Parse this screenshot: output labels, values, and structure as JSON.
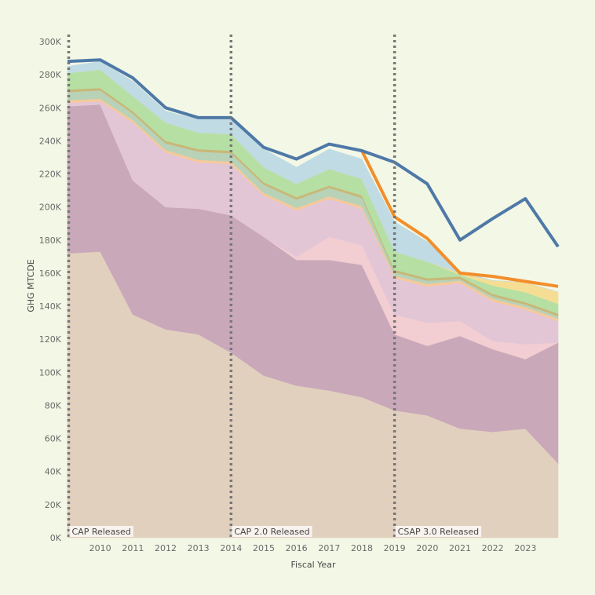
{
  "chart_data": {
    "type": "area",
    "title": "",
    "xlabel": "Fiscal Year",
    "ylabel": "GHG MTCDE",
    "xlim": [
      2009,
      2024
    ],
    "ylim": [
      0,
      300000
    ],
    "grid": false,
    "x": [
      2009,
      2010,
      2011,
      2012,
      2013,
      2014,
      2015,
      2016,
      2017,
      2018,
      2019,
      2020,
      2021,
      2022,
      2023,
      2024
    ],
    "x_ticks": [
      2010,
      2011,
      2012,
      2013,
      2014,
      2015,
      2016,
      2017,
      2018,
      2019,
      2020,
      2021,
      2022,
      2023
    ],
    "y_ticks": [
      0,
      20000,
      40000,
      60000,
      80000,
      100000,
      120000,
      140000,
      160000,
      180000,
      200000,
      220000,
      240000,
      260000,
      280000,
      300000
    ],
    "y_tick_labels": [
      "0K",
      "20K",
      "40K",
      "60K",
      "80K",
      "100K",
      "120K",
      "140K",
      "160K",
      "180K",
      "200K",
      "220K",
      "240K",
      "260K",
      "280K",
      "300K"
    ],
    "stacked_series": [
      {
        "color": "#e2d0be",
        "values": [
          172000,
          173000,
          135000,
          126000,
          123000,
          112000,
          98000,
          92000,
          89000,
          85000,
          77000,
          74000,
          66000,
          64000,
          66000,
          45000
        ]
      },
      {
        "color": "#c9a8ba",
        "values": [
          89000,
          89000,
          81000,
          74000,
          76000,
          83000,
          84000,
          76000,
          79000,
          80000,
          46000,
          42000,
          56000,
          50000,
          42000,
          73000
        ]
      },
      {
        "color": "#f2cdd2",
        "values": [
          0,
          0,
          0,
          0,
          0,
          0,
          0,
          2000,
          14000,
          12000,
          12000,
          14000,
          9000,
          5000,
          9000,
          0
        ]
      },
      {
        "color": "#e2c6d5",
        "values": [
          2000,
          2000,
          35000,
          33000,
          28000,
          31000,
          25000,
          28000,
          23000,
          22000,
          22000,
          22000,
          23000,
          24000,
          21000,
          13000
        ]
      },
      {
        "color": "#f7c99a",
        "values": [
          1500,
          1500,
          1500,
          1500,
          1500,
          1500,
          1500,
          1500,
          1500,
          1500,
          1500,
          1500,
          1500,
          1500,
          1500,
          1500
        ]
      },
      {
        "color": "#b8d2b8",
        "values": [
          5000,
          5000,
          4000,
          4000,
          5000,
          5000,
          5000,
          5000,
          5000,
          5000,
          2000,
          2000,
          1000,
          1500,
          1500,
          1500
        ]
      },
      {
        "color": "#c8b878",
        "values": [
          1500,
          1500,
          1500,
          1500,
          1500,
          1500,
          1500,
          1500,
          1500,
          1500,
          1500,
          1500,
          1500,
          1500,
          1500,
          1500
        ]
      },
      {
        "color": "#b6dfa4",
        "values": [
          10000,
          11000,
          9000,
          11000,
          10000,
          10000,
          9000,
          8000,
          10000,
          10000,
          11000,
          10000,
          1000,
          5000,
          6000,
          6000
        ]
      },
      {
        "color": "#f5de94",
        "values": [
          0,
          0,
          0,
          0,
          0,
          0,
          0,
          0,
          0,
          0,
          0,
          0,
          1000,
          3000,
          6000,
          7000
        ]
      },
      {
        "color": "#c0dbe3",
        "values": [
          4000,
          5000,
          9000,
          7000,
          8000,
          9000,
          11000,
          10000,
          12000,
          12000,
          18000,
          12000,
          1000,
          0,
          0,
          0
        ]
      }
    ],
    "total_line": {
      "color": "#4e79a7",
      "values": [
        288000,
        289000,
        278000,
        260000,
        254000,
        254000,
        236000,
        229000,
        238000,
        234000,
        227000,
        214000,
        180000,
        193000,
        205000,
        176000
      ]
    },
    "orange_line": {
      "color": "#f28e2b",
      "x": [
        2018,
        2019,
        2020,
        2021,
        2022,
        2023,
        2024
      ],
      "values": [
        234000,
        194000,
        181000,
        160000,
        158000,
        155000,
        152000
      ]
    },
    "annotations": [
      {
        "x": 2009,
        "label": "CAP Released"
      },
      {
        "x": 2014,
        "label": "CAP 2.0 Released"
      },
      {
        "x": 2019,
        "label": "CSAP 3.0 Released"
      }
    ]
  }
}
